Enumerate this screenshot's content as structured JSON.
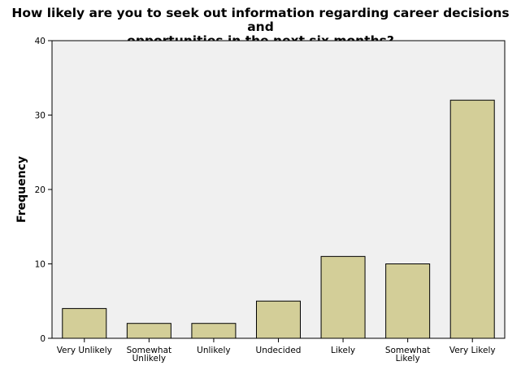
{
  "chart_data": {
    "type": "bar",
    "title_lines": [
      "How likely are you to seek out information regarding career decisions and",
      "opportunities in the next six months?"
    ],
    "xlabel": "",
    "ylabel": "Frequency",
    "categories": [
      [
        "Very Unlikely"
      ],
      [
        "Somewhat",
        "Unlikely"
      ],
      [
        "Unlikely"
      ],
      [
        "Undecided"
      ],
      [
        "Likely"
      ],
      [
        "Somewhat",
        "Likely"
      ],
      [
        "Very Likely"
      ]
    ],
    "values": [
      4,
      2,
      2,
      5,
      11,
      10,
      32
    ],
    "ylim": [
      0,
      40
    ],
    "yticks": [
      0,
      10,
      20,
      30,
      40
    ],
    "grid": false,
    "colors": {
      "bar_fill": "#d3ce98",
      "bar_stroke": "#000000",
      "plot_background": "#f0f0f0"
    }
  }
}
